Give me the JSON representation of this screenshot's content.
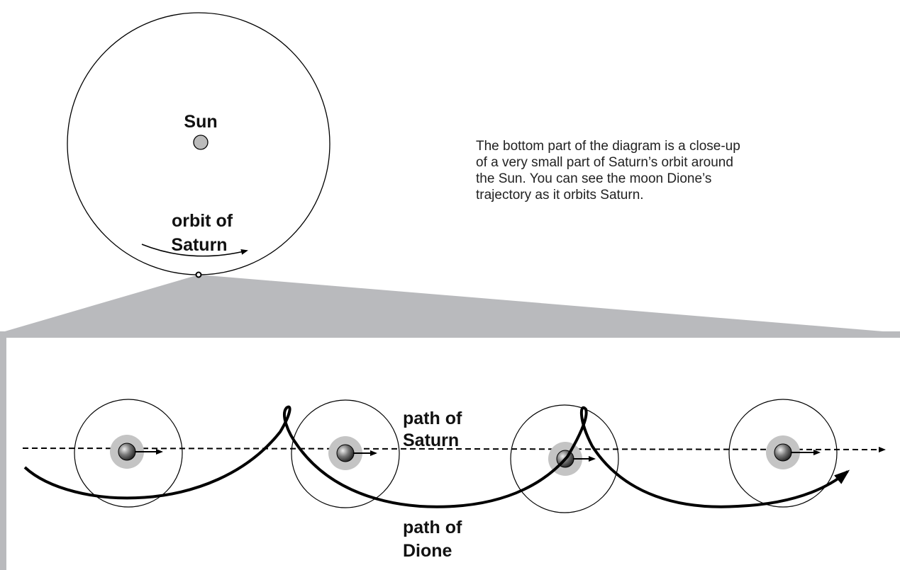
{
  "sun_label": "Sun",
  "orbit_label": [
    "orbit of",
    "Saturn"
  ],
  "description": [
    "The bottom part of the diagram is a close-up",
    "of a very small part of Saturn’s orbit around",
    "the Sun. You can see the moon Dione’s",
    "trajectory as it orbits Saturn."
  ],
  "saturn_path_label": [
    "path of",
    "Saturn"
  ],
  "dione_path_label": [
    "path of",
    "Dione"
  ]
}
